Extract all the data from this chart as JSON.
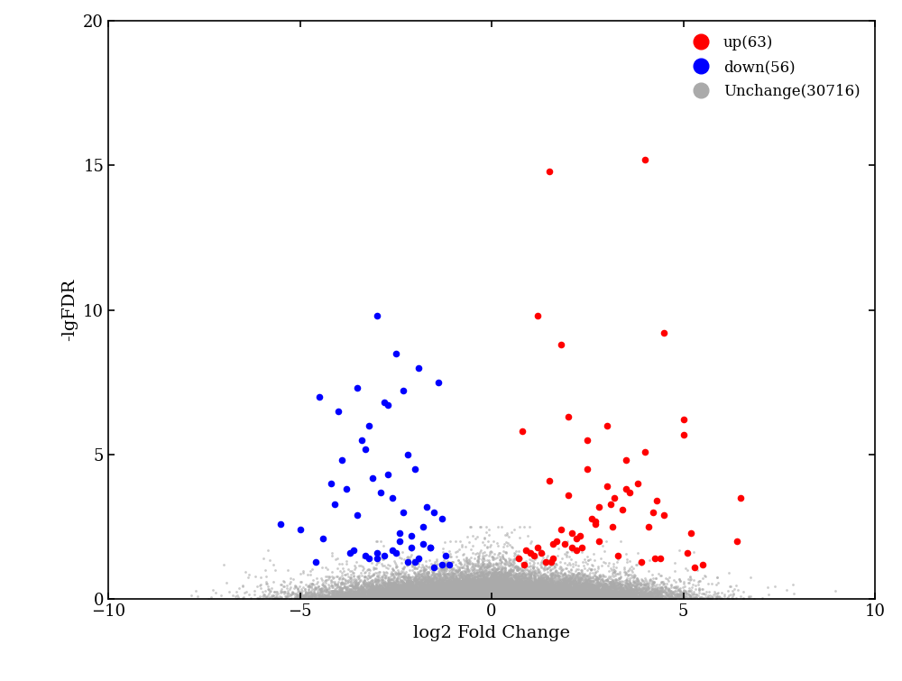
{
  "title": "",
  "xlabel": "log2 Fold Change",
  "ylabel": "-lgFDR",
  "xlim": [
    -10,
    10
  ],
  "ylim": [
    0,
    20
  ],
  "xticks": [
    -10,
    -5,
    0,
    5,
    10
  ],
  "yticks": [
    0,
    5,
    10,
    15,
    20
  ],
  "up_color": "#FF0000",
  "down_color": "#0000FF",
  "unchanged_color": "#AAAAAA",
  "up_label": "up(63)",
  "down_label": "down(56)",
  "unchanged_label": "Unchange(30716)",
  "n_up": 63,
  "n_down": 56,
  "n_unchanged": 30716,
  "marker_size_colored": 30,
  "marker_size_gray": 4,
  "legend_marker_size": 12,
  "random_seed": 42,
  "background_color": "#FFFFFF",
  "figsize": [
    10.0,
    7.55
  ]
}
